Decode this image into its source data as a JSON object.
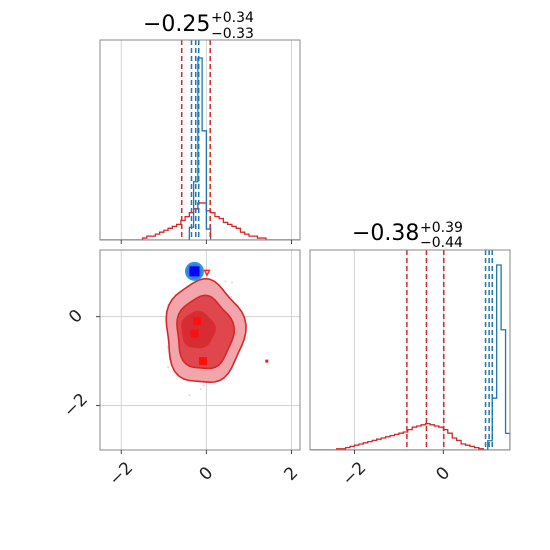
{
  "chart_data": {
    "type": "corner",
    "title": "",
    "parameters": [
      {
        "title_main": "−0.25",
        "title_sup": "+0.34",
        "title_sub": "−0.33",
        "range": [
          -2.5,
          2.2
        ],
        "ticks": [
          {
            "value": -2,
            "label": "−2"
          },
          {
            "value": 0,
            "label": "0"
          },
          {
            "value": 2,
            "label": "2"
          }
        ]
      },
      {
        "title_main": "−0.38",
        "title_sup": "+0.39",
        "title_sub": "−0.44",
        "range": [
          -3.0,
          1.5
        ],
        "ticks": [
          {
            "value": -2,
            "label": "−2"
          },
          {
            "value": 0,
            "label": "0"
          }
        ]
      }
    ],
    "series": [
      {
        "color": "#1f77b4",
        "quantiles_p1": [
          -0.35,
          -0.25,
          -0.18
        ],
        "quantiles_p2": [
          0.95,
          1.03,
          1.1
        ],
        "hist_p1": {
          "start": -2.5,
          "width": 0.1,
          "values": [
            0,
            0,
            0,
            0,
            0,
            0,
            0,
            0,
            0,
            0,
            0,
            0,
            0,
            0,
            0,
            0,
            0,
            0,
            0,
            0,
            0,
            7,
            32,
            100,
            60,
            6,
            0,
            0,
            0,
            0,
            0,
            0,
            0,
            0,
            0,
            0,
            0,
            0,
            0,
            0,
            0,
            0,
            0,
            0,
            0,
            0,
            0
          ]
        },
        "hist_p2": {
          "start": -3.0,
          "width": 0.1,
          "values": [
            0,
            0,
            0,
            0,
            0,
            0,
            0,
            0,
            0,
            0,
            0,
            0,
            0,
            0,
            0,
            0,
            0,
            0,
            0,
            0,
            0,
            0,
            0,
            0,
            0,
            0,
            0,
            0,
            0,
            0,
            0,
            0,
            0,
            0,
            0,
            0,
            0,
            0,
            0,
            0,
            5,
            28,
            100,
            65,
            9,
            0,
            0
          ]
        },
        "blob_center": [
          -0.28,
          1.02
        ]
      },
      {
        "color": "#d62728",
        "quantiles_p1": [
          -0.58,
          -0.25,
          0.09
        ],
        "quantiles_p2": [
          -0.82,
          -0.38,
          0.01
        ],
        "hist_p1": {
          "start": -2.5,
          "width": 0.1,
          "values": [
            0,
            0,
            0,
            0,
            0,
            0,
            0,
            0,
            0,
            0,
            1,
            2,
            2,
            3,
            4,
            5,
            6,
            7,
            8,
            10,
            12,
            14,
            16,
            19,
            19,
            15,
            14,
            12,
            11,
            9,
            8,
            7,
            6,
            4,
            3,
            2,
            2,
            1,
            1,
            0,
            0,
            0,
            0,
            0,
            0,
            0,
            0
          ]
        },
        "hist_p2": {
          "start": -3.0,
          "width": 0.1,
          "values": [
            0,
            0,
            0,
            0,
            0,
            0,
            1,
            1,
            2,
            3,
            4,
            5,
            6,
            7,
            8,
            9,
            10,
            11,
            12,
            13,
            14,
            15,
            17,
            19,
            20,
            21,
            22,
            21,
            20,
            19,
            17,
            14,
            10,
            8,
            5,
            4,
            3,
            2,
            1,
            0,
            0,
            0,
            0,
            0,
            0,
            0
          ]
        },
        "contour_center": [
          -0.05,
          -0.35
        ]
      }
    ]
  }
}
